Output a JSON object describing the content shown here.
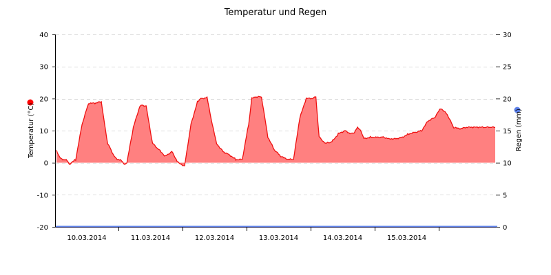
{
  "chart_data": {
    "type": "area",
    "title": "Temperatur und Regen",
    "xlabel": "",
    "ylabel": "Temperatur (°C)",
    "y2label": "Regen (mm)",
    "ylim": [
      -20,
      40
    ],
    "y2lim": [
      0,
      30
    ],
    "yticks": [
      40,
      30,
      20,
      10,
      0,
      -10,
      -20
    ],
    "y2ticks": [
      30,
      25,
      20,
      15,
      10,
      5,
      0
    ],
    "xtick_labels": [
      "10.03.2014",
      "11.03.2014",
      "12.03.2014",
      "13.03.2014",
      "14.03.2014",
      "15.03.2014"
    ],
    "grid": true,
    "legend": [
      {
        "name": "Temperatur (°C)",
        "color": "#ff0000",
        "axis": "left"
      },
      {
        "name": "Regen (mm)",
        "color": "#5b7fe8",
        "axis": "right"
      }
    ],
    "series": [
      {
        "name": "Temperatur",
        "unit": "°C",
        "color": "#ff0000",
        "fill": "#ff8080",
        "x_days_from_start": [
          0.0,
          0.05,
          0.1,
          0.15,
          0.2,
          0.3,
          0.4,
          0.5,
          0.6,
          0.7,
          0.75,
          0.8,
          0.85,
          0.9,
          0.95,
          1.0,
          1.05,
          1.1,
          1.2,
          1.3,
          1.35,
          1.4,
          1.5,
          1.6,
          1.7,
          1.8,
          1.9,
          2.0,
          2.1,
          2.2,
          2.25,
          2.3,
          2.35,
          2.4,
          2.5,
          2.6,
          2.7,
          2.8,
          2.9,
          3.0,
          3.05,
          3.1,
          3.2,
          3.3,
          3.4,
          3.5,
          3.6,
          3.7,
          3.8,
          3.9,
          4.0,
          4.05,
          4.1,
          4.15,
          4.2,
          4.3,
          4.4,
          4.5,
          4.6,
          4.65,
          4.7,
          4.75,
          4.8,
          4.9,
          5.0,
          5.1,
          5.2,
          5.3,
          5.4,
          5.5,
          5.6,
          5.7,
          5.8,
          5.9,
          6.0,
          6.1,
          6.2,
          6.3,
          6.4,
          6.5,
          6.6,
          6.7,
          6.8,
          6.85
        ],
        "values": [
          4,
          1.5,
          1,
          1,
          -0.5,
          1,
          12,
          18.5,
          18.5,
          19,
          12,
          6,
          4,
          2,
          1,
          1,
          -0.5,
          0,
          11,
          17.5,
          18,
          17.5,
          6,
          4,
          2,
          3.5,
          0,
          -1,
          12,
          19,
          20,
          20,
          20.5,
          15,
          6,
          3.5,
          2.5,
          1,
          1,
          12,
          20,
          20.5,
          20.5,
          8,
          4,
          2,
          1,
          1,
          14,
          20,
          20,
          20.5,
          8,
          7,
          6,
          6.5,
          9,
          10,
          9,
          9.5,
          11,
          10,
          7.5,
          8,
          8,
          8,
          7.5,
          7.5,
          8,
          9,
          9.5,
          10,
          13,
          14,
          17,
          15,
          11,
          10.5,
          11,
          11,
          11,
          11,
          11,
          11
        ],
        "note": "x spans roughly 9.03.2014 ~14:00 through 16.03.2014 ~21:00; values approximate daily sinusoidal peaks ~18-21 °C, nights ~0 °C, last two days milder ~7-17 °C"
      },
      {
        "name": "Regen",
        "unit": "mm",
        "color": "#5b7fe8",
        "values_summary": "0 mm throughout (flat line along bottom axis)"
      }
    ]
  },
  "legend_markers": {
    "temperature_color": "#ff0000",
    "rain_color": "#5b7fe8"
  }
}
